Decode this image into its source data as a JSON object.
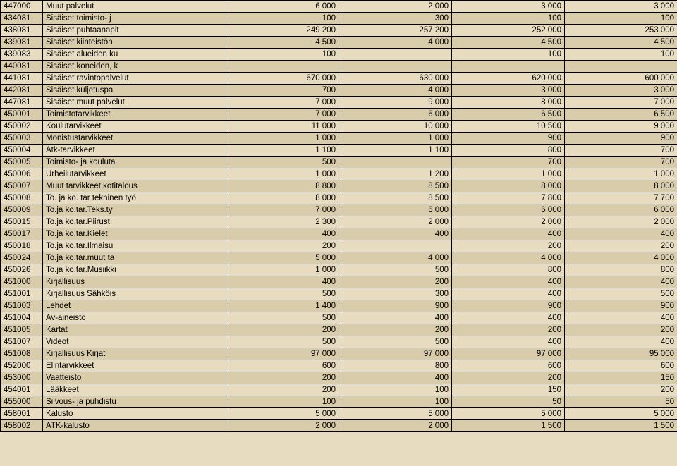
{
  "table": {
    "columns": [
      "code",
      "desc",
      "c1",
      "c2",
      "c3",
      "c4"
    ],
    "colors": {
      "row_bg_norm": "#e8dcc0",
      "row_bg_alt": "#d9ccab",
      "border": "#000000",
      "text": "#000000"
    },
    "font_size": 11.5,
    "rows": [
      {
        "code": "447000",
        "desc": "Muut palvelut",
        "c1": "6 000",
        "c2": "2 000",
        "c3": "3 000",
        "c4": "3 000"
      },
      {
        "code": "434081",
        "desc": "Sisäiset toimisto- j",
        "c1": "100",
        "c2": "300",
        "c3": "100",
        "c4": "100"
      },
      {
        "code": "438081",
        "desc": "Sisäiset puhtaanapit",
        "c1": "249 200",
        "c2": "257 200",
        "c3": "252 000",
        "c4": "253 000"
      },
      {
        "code": "439081",
        "desc": "Sisäiset kiinteistön",
        "c1": "4 500",
        "c2": "4 000",
        "c3": "4 500",
        "c4": "4 500"
      },
      {
        "code": "439083",
        "desc": "Sisäiset alueiden ku",
        "c1": "100",
        "c2": "",
        "c3": "100",
        "c4": "100"
      },
      {
        "code": "440081",
        "desc": "Sisäiset koneiden, k",
        "c1": "",
        "c2": "",
        "c3": "",
        "c4": ""
      },
      {
        "code": "441081",
        "desc": "Sisäiset ravintopalvelut",
        "c1": "670 000",
        "c2": "630 000",
        "c3": "620 000",
        "c4": "600 000"
      },
      {
        "code": "442081",
        "desc": "Sisäiset  kuljetuspa",
        "c1": "700",
        "c2": "4 000",
        "c3": "3 000",
        "c4": "3 000"
      },
      {
        "code": "447081",
        "desc": "Sisäiset muut palvelut",
        "c1": "7 000",
        "c2": "9 000",
        "c3": "8 000",
        "c4": "7 000"
      },
      {
        "code": "450001",
        "desc": "Toimistotarvikkeet",
        "c1": "7 000",
        "c2": "6 000",
        "c3": "6 500",
        "c4": "6 500"
      },
      {
        "code": "450002",
        "desc": "Koulutarvikkeet",
        "c1": "11 000",
        "c2": "10 000",
        "c3": "10 500",
        "c4": "9 000"
      },
      {
        "code": "450003",
        "desc": "Monistustarvikkeet",
        "c1": "1 000",
        "c2": "1 000",
        "c3": "900",
        "c4": "900"
      },
      {
        "code": "450004",
        "desc": "Atk-tarvikkeet",
        "c1": "1 100",
        "c2": "1 100",
        "c3": "800",
        "c4": "700"
      },
      {
        "code": "450005",
        "desc": "Toimisto- ja kouluta",
        "c1": "500",
        "c2": "",
        "c3": "700",
        "c4": "700"
      },
      {
        "code": "450006",
        "desc": "Urheilutarvikkeet",
        "c1": "1 000",
        "c2": "1 200",
        "c3": "1 000",
        "c4": "1 000"
      },
      {
        "code": "450007",
        "desc": "Muut tarvikkeet,kotitalous",
        "c1": "8 800",
        "c2": "8 500",
        "c3": "8 000",
        "c4": "8 000"
      },
      {
        "code": "450008",
        "desc": "To. ja ko. tar tekninen työ",
        "c1": "8 000",
        "c2": "8 500",
        "c3": "7 800",
        "c4": "7 700"
      },
      {
        "code": "450009",
        "desc": "To.ja ko.tar.Teks.ty",
        "c1": "7 000",
        "c2": "6 000",
        "c3": "6 000",
        "c4": "6 000"
      },
      {
        "code": "450015",
        "desc": "To.ja ko.tar.Piirust",
        "c1": "2 300",
        "c2": "2 000",
        "c3": "2 000",
        "c4": "2 000"
      },
      {
        "code": "450017",
        "desc": "To.ja ko.tar.Kielet",
        "c1": "400",
        "c2": "400",
        "c3": "400",
        "c4": "400"
      },
      {
        "code": "450018",
        "desc": "To.ja ko.tar.Ilmaisu",
        "c1": "200",
        "c2": "",
        "c3": "200",
        "c4": "200"
      },
      {
        "code": "450024",
        "desc": "To.ja ko.tar.muut ta",
        "c1": "5 000",
        "c2": "4 000",
        "c3": "4 000",
        "c4": "4 000"
      },
      {
        "code": "450026",
        "desc": "To.ja ko.tar.Musiikki",
        "c1": "1 000",
        "c2": "500",
        "c3": "800",
        "c4": "800"
      },
      {
        "code": "451000",
        "desc": "Kirjallisuus",
        "c1": "400",
        "c2": "200",
        "c3": "400",
        "c4": "400"
      },
      {
        "code": "451001",
        "desc": "Kirjallisuus Sähköis",
        "c1": "500",
        "c2": "300",
        "c3": "400",
        "c4": "500"
      },
      {
        "code": "451003",
        "desc": "Lehdet",
        "c1": "1 400",
        "c2": "900",
        "c3": "900",
        "c4": "900"
      },
      {
        "code": "451004",
        "desc": "Av-aineisto",
        "c1": "500",
        "c2": "400",
        "c3": "400",
        "c4": "400"
      },
      {
        "code": "451005",
        "desc": "Kartat",
        "c1": "200",
        "c2": "200",
        "c3": "200",
        "c4": "200"
      },
      {
        "code": "451007",
        "desc": "Videot",
        "c1": "500",
        "c2": "500",
        "c3": "400",
        "c4": "400"
      },
      {
        "code": "451008",
        "desc": "Kirjallisuus Kirjat",
        "c1": "97 000",
        "c2": "97 000",
        "c3": "97 000",
        "c4": "95 000"
      },
      {
        "code": "452000",
        "desc": "Elintarvikkeet",
        "c1": "600",
        "c2": "800",
        "c3": "600",
        "c4": "600"
      },
      {
        "code": "453000",
        "desc": "Vaatteisto",
        "c1": "200",
        "c2": "400",
        "c3": "200",
        "c4": "150"
      },
      {
        "code": "454001",
        "desc": "Lääkkeet",
        "c1": "200",
        "c2": "100",
        "c3": "150",
        "c4": "200"
      },
      {
        "code": "455000",
        "desc": "Siivous- ja puhdistu",
        "c1": "100",
        "c2": "100",
        "c3": "50",
        "c4": "50"
      },
      {
        "code": "458001",
        "desc": "Kalusto",
        "c1": "5 000",
        "c2": "5 000",
        "c3": "5 000",
        "c4": "5 000"
      },
      {
        "code": "458002",
        "desc": "ATK-kalusto",
        "c1": "2 000",
        "c2": "2 000",
        "c3": "1 500",
        "c4": "1 500"
      }
    ]
  }
}
